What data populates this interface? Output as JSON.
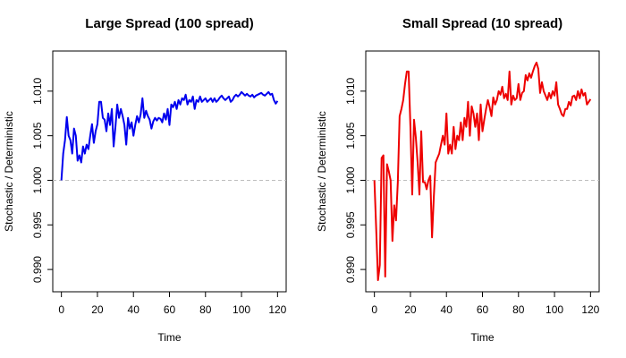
{
  "chart_data": [
    {
      "type": "line",
      "title": "Large Spread (100 spread)",
      "xlabel": "Time",
      "ylabel": "Stochastic / Deterministic",
      "xlim": [
        0,
        120
      ],
      "ylim": [
        0.9875,
        1.0145
      ],
      "xticks": [
        0,
        20,
        40,
        60,
        80,
        100,
        120
      ],
      "yticks": [
        0.99,
        0.995,
        1.0,
        1.005,
        1.01
      ],
      "ytick_labels": [
        "0.990",
        "0.995",
        "1.000",
        "1.005",
        "1.010"
      ],
      "reference_line": 1.0,
      "color": "#0000ee",
      "x": [
        0,
        1,
        2,
        3,
        4,
        5,
        6,
        7,
        8,
        9,
        10,
        11,
        12,
        13,
        14,
        15,
        16,
        17,
        18,
        19,
        20,
        21,
        22,
        23,
        24,
        25,
        26,
        27,
        28,
        29,
        30,
        31,
        32,
        33,
        34,
        35,
        36,
        37,
        38,
        39,
        40,
        41,
        42,
        43,
        44,
        45,
        46,
        47,
        48,
        49,
        50,
        51,
        52,
        53,
        54,
        55,
        56,
        57,
        58,
        59,
        60,
        61,
        62,
        63,
        64,
        65,
        66,
        67,
        68,
        69,
        70,
        71,
        72,
        73,
        74,
        75,
        76,
        77,
        78,
        79,
        80,
        81,
        82,
        83,
        84,
        85,
        86,
        87,
        88,
        89,
        90,
        91,
        92,
        93,
        94,
        95,
        96,
        97,
        98,
        99,
        100,
        101,
        102,
        103,
        104,
        105,
        106,
        107,
        108,
        109,
        110,
        111,
        112,
        113,
        114,
        115,
        116,
        117,
        118,
        119,
        120
      ],
      "y": [
        1.0,
        1.003,
        1.0045,
        1.0071,
        1.005,
        1.0045,
        1.003,
        1.0058,
        1.005,
        1.0022,
        1.0028,
        1.002,
        1.0038,
        1.003,
        1.004,
        1.0035,
        1.005,
        1.0063,
        1.0042,
        1.0055,
        1.0063,
        1.0088,
        1.0088,
        1.007,
        1.0068,
        1.0055,
        1.0075,
        1.0062,
        1.008,
        1.0038,
        1.006,
        1.0085,
        1.007,
        1.008,
        1.0072,
        1.0062,
        1.004,
        1.007,
        1.0058,
        1.0065,
        1.005,
        1.0062,
        1.0072,
        1.0065,
        1.0074,
        1.0092,
        1.007,
        1.0078,
        1.0072,
        1.0068,
        1.0058,
        1.0066,
        1.007,
        1.0067,
        1.007,
        1.0069,
        1.0065,
        1.0075,
        1.0068,
        1.008,
        1.0062,
        1.0085,
        1.0082,
        1.0088,
        1.008,
        1.009,
        1.0085,
        1.0092,
        1.009,
        1.0096,
        1.0085,
        1.009,
        1.0088,
        1.0094,
        1.008,
        1.009,
        1.0088,
        1.0094,
        1.0088,
        1.009,
        1.0092,
        1.0088,
        1.009,
        1.0092,
        1.0088,
        1.0092,
        1.0088,
        1.009,
        1.0093,
        1.0095,
        1.0092,
        1.009,
        1.0092,
        1.0094,
        1.0088,
        1.009,
        1.0094,
        1.0096,
        1.0094,
        1.0096,
        1.0099,
        1.0097,
        1.0095,
        1.0097,
        1.0095,
        1.0094,
        1.0096,
        1.0093,
        1.0095,
        1.0096,
        1.0097,
        1.0098,
        1.0096,
        1.0095,
        1.0097,
        1.0099,
        1.0096,
        1.0097,
        1.009,
        1.0086,
        1.0089
      ]
    },
    {
      "type": "line",
      "title": "Small Spread (10 spread)",
      "xlabel": "Time",
      "ylabel": "Stochastic / Deterministic",
      "xlim": [
        0,
        120
      ],
      "ylim": [
        0.9875,
        1.0145
      ],
      "xticks": [
        0,
        20,
        40,
        60,
        80,
        100,
        120
      ],
      "yticks": [
        0.99,
        0.995,
        1.0,
        1.005,
        1.01
      ],
      "ytick_labels": [
        "0.990",
        "0.995",
        "1.000",
        "1.005",
        "1.010"
      ],
      "reference_line": 1.0,
      "color": "#ee0000",
      "x": [
        0,
        1,
        2,
        3,
        4,
        5,
        6,
        7,
        8,
        9,
        10,
        11,
        12,
        13,
        14,
        15,
        16,
        17,
        18,
        19,
        20,
        21,
        22,
        23,
        24,
        25,
        26,
        27,
        28,
        29,
        30,
        31,
        32,
        33,
        34,
        35,
        36,
        37,
        38,
        39,
        40,
        41,
        42,
        43,
        44,
        45,
        46,
        47,
        48,
        49,
        50,
        51,
        52,
        53,
        54,
        55,
        56,
        57,
        58,
        59,
        60,
        61,
        62,
        63,
        64,
        65,
        66,
        67,
        68,
        69,
        70,
        71,
        72,
        73,
        74,
        75,
        76,
        77,
        78,
        79,
        80,
        81,
        82,
        83,
        84,
        85,
        86,
        87,
        88,
        89,
        90,
        91,
        92,
        93,
        94,
        95,
        96,
        97,
        98,
        99,
        100,
        101,
        102,
        103,
        104,
        105,
        106,
        107,
        108,
        109,
        110,
        111,
        112,
        113,
        114,
        115,
        116,
        117,
        118,
        119,
        120
      ],
      "y": [
        1.0,
        0.9945,
        0.9888,
        0.9905,
        1.0025,
        1.0028,
        0.9892,
        1.0018,
        1.001,
        1.0,
        0.9932,
        0.9972,
        0.9955,
        0.9998,
        1.0072,
        1.008,
        1.009,
        1.0108,
        1.0122,
        1.0122,
        1.006,
        0.9984,
        1.0068,
        1.0048,
        1.002,
        0.9984,
        1.0055,
        0.9998,
        0.9998,
        0.999,
        1.0,
        1.0005,
        0.9936,
        0.9982,
        1.002,
        1.0025,
        1.003,
        1.004,
        1.005,
        1.004,
        1.0075,
        1.003,
        1.004,
        1.003,
        1.006,
        1.0035,
        1.005,
        1.0045,
        1.0065,
        1.0045,
        1.007,
        1.006,
        1.0088,
        1.005,
        1.0083,
        1.0075,
        1.006,
        1.0075,
        1.0045,
        1.0085,
        1.0055,
        1.0068,
        1.008,
        1.009,
        1.0082,
        1.0072,
        1.0093,
        1.0085,
        1.009,
        1.01,
        1.0096,
        1.0105,
        1.0092,
        1.0097,
        1.009,
        1.0122,
        1.0085,
        1.0095,
        1.009,
        1.0092,
        1.0108,
        1.009,
        1.0098,
        1.01,
        1.0118,
        1.0112,
        1.012,
        1.0115,
        1.0122,
        1.0128,
        1.0132,
        1.0125,
        1.0098,
        1.011,
        1.01,
        1.0095,
        1.009,
        1.0098,
        1.0092,
        1.01,
        1.0095,
        1.011,
        1.0085,
        1.008,
        1.0074,
        1.0072,
        1.008,
        1.008,
        1.0088,
        1.0084,
        1.0094,
        1.0095,
        1.009,
        1.01,
        1.0092,
        1.0102,
        1.0095,
        1.0098,
        1.0085,
        1.0088,
        1.0091
      ]
    }
  ]
}
